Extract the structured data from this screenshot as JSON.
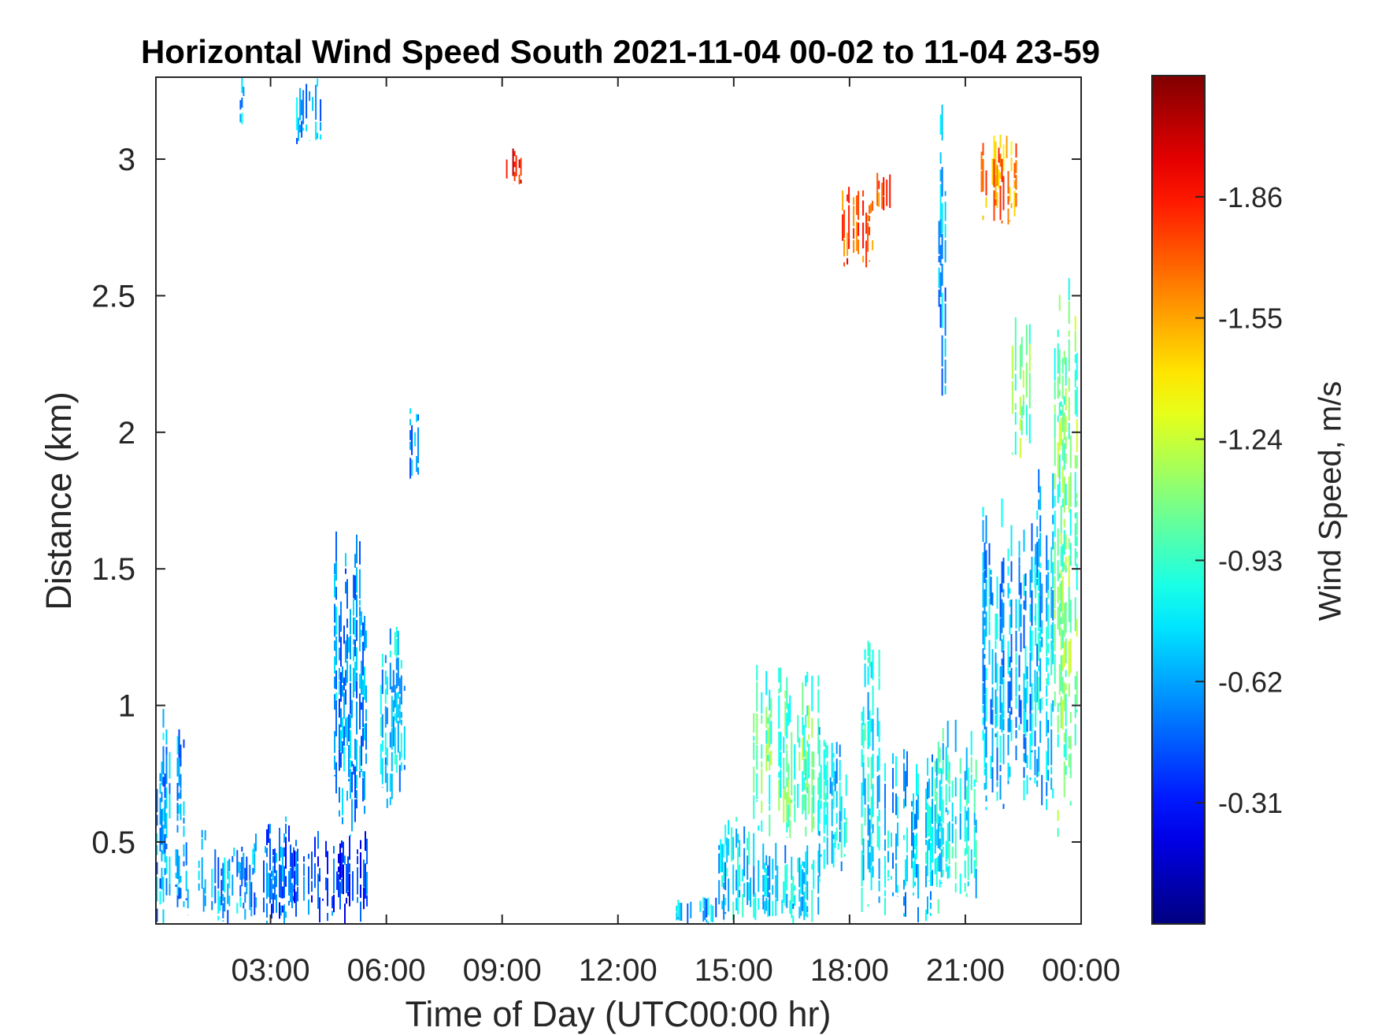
{
  "chart_data": {
    "type": "heatmap",
    "title": "Horizontal Wind Speed South 2021-11-04 00-02 to 11-04 23-59",
    "xlabel": "Time of Day (UTC00:00 hr)",
    "ylabel": "Distance (km)",
    "xlim": [
      0.03,
      24.0
    ],
    "ylim": [
      0.2,
      3.3
    ],
    "x_ticks": [
      3,
      6,
      9,
      12,
      15,
      18,
      21,
      24
    ],
    "x_tick_labels": [
      "03:00",
      "06:00",
      "09:00",
      "12:00",
      "15:00",
      "18:00",
      "21:00",
      "00:00"
    ],
    "y_ticks": [
      0.5,
      1,
      1.5,
      2,
      2.5,
      3
    ],
    "y_tick_labels": [
      "0.5",
      "1",
      "1.5",
      "2",
      "2.5",
      "3"
    ],
    "grid": false,
    "colorbar": {
      "label": "Wind Speed, m/s",
      "colormap": "jet",
      "range": [
        0,
        -2.17
      ],
      "ticks": [
        -0.31,
        -0.62,
        -0.93,
        -1.24,
        -1.55,
        -1.86
      ],
      "tick_labels": [
        "-0.31",
        "-0.62",
        "-0.93",
        "-1.24",
        "-1.55",
        "-1.86"
      ]
    },
    "regions": [
      {
        "x": [
          0.0,
          0.8
        ],
        "y": [
          0.2,
          1.0
        ],
        "value": -0.62
      },
      {
        "x": [
          0.8,
          1.3
        ],
        "y": [
          0.2,
          0.55
        ],
        "value": -0.6
      },
      {
        "x": [
          1.3,
          2.6
        ],
        "y": [
          0.2,
          0.5
        ],
        "value": -0.6
      },
      {
        "x": [
          2.6,
          3.6
        ],
        "y": [
          0.2,
          0.6
        ],
        "value": -0.5
      },
      {
        "x": [
          3.6,
          5.5
        ],
        "y": [
          0.2,
          0.55
        ],
        "value": -0.42
      },
      {
        "x": [
          4.6,
          5.5
        ],
        "y": [
          0.5,
          1.65
        ],
        "value": -0.62
      },
      {
        "x": [
          5.8,
          6.5
        ],
        "y": [
          0.6,
          1.3
        ],
        "value": -0.7
      },
      {
        "x": [
          2.2,
          2.3
        ],
        "y": [
          3.1,
          3.3
        ],
        "value": -0.62
      },
      {
        "x": [
          3.5,
          4.3
        ],
        "y": [
          3.05,
          3.3
        ],
        "value": -0.62
      },
      {
        "x": [
          6.6,
          7.0
        ],
        "y": [
          1.8,
          2.1
        ],
        "value": -0.55
      },
      {
        "x": [
          9.1,
          9.5
        ],
        "y": [
          2.9,
          3.05
        ],
        "value": -1.9
      },
      {
        "x": [
          13.5,
          14.6
        ],
        "y": [
          0.2,
          0.3
        ],
        "value": -0.65
      },
      {
        "x": [
          14.6,
          15.5
        ],
        "y": [
          0.2,
          0.6
        ],
        "value": -0.72
      },
      {
        "x": [
          15.5,
          17.2
        ],
        "y": [
          0.2,
          0.5
        ],
        "value": -0.72
      },
      {
        "x": [
          15.5,
          17.2
        ],
        "y": [
          0.5,
          1.15
        ],
        "value": -1.0
      },
      {
        "x": [
          17.2,
          17.9
        ],
        "y": [
          0.35,
          0.95
        ],
        "value": -0.75
      },
      {
        "x": [
          18.3,
          18.8
        ],
        "y": [
          0.2,
          1.4
        ],
        "value": -0.8
      },
      {
        "x": [
          18.9,
          20.2
        ],
        "y": [
          0.2,
          0.85
        ],
        "value": -0.7
      },
      {
        "x": [
          20.2,
          21.3
        ],
        "y": [
          0.2,
          0.95
        ],
        "value": -0.82
      },
      {
        "x": [
          17.8,
          18.6
        ],
        "y": [
          2.6,
          2.9
        ],
        "value": -1.75
      },
      {
        "x": [
          18.7,
          19.1
        ],
        "y": [
          2.8,
          2.95
        ],
        "value": -1.7
      },
      {
        "x": [
          20.3,
          20.5
        ],
        "y": [
          2.1,
          3.2
        ],
        "value": -0.62
      },
      {
        "x": [
          21.4,
          22.3
        ],
        "y": [
          2.75,
          3.1
        ],
        "value": -1.6
      },
      {
        "x": [
          21.4,
          22.8
        ],
        "y": [
          0.6,
          1.8
        ],
        "value": -0.65
      },
      {
        "x": [
          22.2,
          22.7
        ],
        "y": [
          1.9,
          2.45
        ],
        "value": -1.05
      },
      {
        "x": [
          22.8,
          23.3
        ],
        "y": [
          0.6,
          1.9
        ],
        "value": -0.72
      },
      {
        "x": [
          23.3,
          24.0
        ],
        "y": [
          0.5,
          2.6
        ],
        "value": -1.05
      }
    ]
  }
}
